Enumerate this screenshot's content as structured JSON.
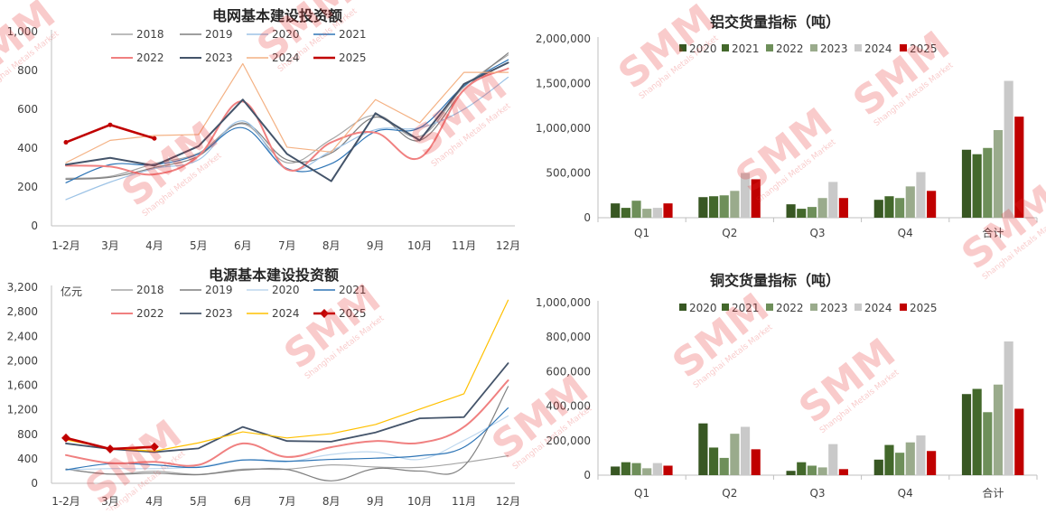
{
  "watermark": {
    "brand": "SMM",
    "tagline": "Shanghai Metals Market",
    "color": "#e52f2f"
  },
  "chart_data": [
    {
      "id": "grid",
      "type": "line",
      "title": "电网基本建设投资额",
      "unit_label": "",
      "categories": [
        "1-2月",
        "3月",
        "4月",
        "5月",
        "6月",
        "7月",
        "8月",
        "9月",
        "10月",
        "11月",
        "12月"
      ],
      "ylim": [
        0,
        1000
      ],
      "yticks": [
        "0",
        "200",
        "400",
        "600",
        "800",
        "1,000"
      ],
      "smooth": true,
      "legend_rows": [
        [
          "2018",
          "2019",
          "2020",
          "2021"
        ],
        [
          "2022",
          "2023",
          "2024",
          "2025"
        ]
      ],
      "series": [
        {
          "name": "2018",
          "color": "#a6a6a6",
          "width": 1.2,
          "values": [
            245,
            255,
            320,
            375,
            525,
            325,
            445,
            570,
            460,
            715,
            880
          ]
        },
        {
          "name": "2019",
          "color": "#7f7f7f",
          "width": 1.2,
          "values": [
            240,
            250,
            300,
            360,
            530,
            340,
            375,
            560,
            440,
            700,
            890
          ]
        },
        {
          "name": "2020",
          "color": "#9dc3e6",
          "width": 1.2,
          "values": [
            135,
            225,
            295,
            340,
            540,
            290,
            385,
            495,
            505,
            600,
            765
          ]
        },
        {
          "name": "2021",
          "color": "#2e75b6",
          "width": 1.2,
          "values": [
            222,
            315,
            315,
            370,
            505,
            295,
            320,
            485,
            505,
            720,
            855
          ]
        },
        {
          "name": "2022",
          "color": "#f08080",
          "width": 2.0,
          "values": [
            310,
            305,
            265,
            360,
            640,
            290,
            430,
            480,
            350,
            700,
            810
          ]
        },
        {
          "name": "2023",
          "color": "#44546a",
          "width": 2.0,
          "smooth": false,
          "values": [
            315,
            350,
            310,
            410,
            650,
            370,
            230,
            580,
            440,
            730,
            840
          ]
        },
        {
          "name": "2024",
          "color": "#f4b183",
          "width": 1.2,
          "smooth": false,
          "values": [
            325,
            440,
            465,
            470,
            835,
            405,
            380,
            650,
            530,
            790,
            790
          ]
        },
        {
          "name": "2025",
          "color": "#c00000",
          "width": 2.6,
          "smooth": false,
          "values": [
            430,
            520,
            450,
            null,
            null,
            null,
            null,
            null,
            null,
            null,
            null
          ]
        }
      ]
    },
    {
      "id": "power",
      "type": "line",
      "title": "电源基本建设投资额",
      "unit_label": "亿元",
      "categories": [
        "1-2月",
        "3月",
        "4月",
        "5月",
        "6月",
        "7月",
        "8月",
        "9月",
        "10月",
        "11月",
        "12月"
      ],
      "ylim": [
        0,
        3200
      ],
      "yticks": [
        "0",
        "400",
        "800",
        "1,200",
        "1,600",
        "2,000",
        "2,400",
        "2,800",
        "3,200"
      ],
      "smooth": true,
      "legend_rows": [
        [
          "2018",
          "2019",
          "2020",
          "2021"
        ],
        [
          "2022",
          "2023",
          "2024",
          "2025"
        ]
      ],
      "series": [
        {
          "name": "2018",
          "color": "#a6a6a6",
          "width": 1.2,
          "values": [
            230,
            150,
            195,
            145,
            230,
            230,
            300,
            265,
            260,
            340,
            450
          ]
        },
        {
          "name": "2019",
          "color": "#7f7f7f",
          "width": 1.2,
          "values": [
            230,
            150,
            165,
            140,
            215,
            225,
            40,
            240,
            200,
            280,
            1580
          ]
        },
        {
          "name": "2020",
          "color": "#bdd7ee",
          "width": 1.2,
          "values": [
            220,
            240,
            240,
            270,
            380,
            350,
            470,
            510,
            390,
            700,
            1100
          ]
        },
        {
          "name": "2021",
          "color": "#2e75b6",
          "width": 1.2,
          "values": [
            220,
            320,
            300,
            260,
            380,
            360,
            390,
            410,
            450,
            590,
            1230
          ]
        },
        {
          "name": "2022",
          "color": "#f08080",
          "width": 2.0,
          "values": [
            460,
            330,
            350,
            300,
            650,
            430,
            590,
            690,
            660,
            920,
            1680
          ]
        },
        {
          "name": "2023",
          "color": "#44546a",
          "width": 1.8,
          "smooth": false,
          "values": [
            650,
            560,
            510,
            570,
            920,
            690,
            680,
            830,
            1060,
            1080,
            1960
          ]
        },
        {
          "name": "2024",
          "color": "#ffc000",
          "width": 1.2,
          "smooth": false,
          "values": [
            710,
            570,
            525,
            660,
            840,
            740,
            810,
            960,
            1210,
            1460,
            2990
          ]
        },
        {
          "name": "2025",
          "color": "#c00000",
          "width": 2.6,
          "smooth": false,
          "markers": true,
          "values": [
            740,
            560,
            595,
            null,
            null,
            null,
            null,
            null,
            null,
            null,
            null
          ]
        }
      ]
    },
    {
      "id": "alu",
      "type": "bar",
      "title": "铝交货量指标（吨）",
      "categories": [
        "Q1",
        "Q2",
        "Q3",
        "Q4",
        "合计"
      ],
      "ylim": [
        0,
        2000000
      ],
      "yticks": [
        "0",
        "500,000",
        "1,000,000",
        "1,500,000",
        "2,000,000"
      ],
      "series": [
        {
          "name": "2020",
          "color": "#385723",
          "values": [
            160000,
            230000,
            150000,
            200000,
            760000
          ]
        },
        {
          "name": "2021",
          "color": "#43682b",
          "values": [
            110000,
            240000,
            100000,
            240000,
            710000
          ]
        },
        {
          "name": "2022",
          "color": "#6e8f5a",
          "values": [
            190000,
            250000,
            120000,
            220000,
            780000
          ]
        },
        {
          "name": "2023",
          "color": "#9aab8c",
          "values": [
            100000,
            300000,
            220000,
            350000,
            980000
          ]
        },
        {
          "name": "2024",
          "color": "#c9c9c9",
          "values": [
            110000,
            500000,
            400000,
            510000,
            1530000
          ]
        },
        {
          "name": "2025",
          "color": "#c00000",
          "values": [
            160000,
            430000,
            220000,
            300000,
            1130000
          ]
        }
      ]
    },
    {
      "id": "copper",
      "type": "bar",
      "title": "铜交货量指标（吨）",
      "categories": [
        "Q1",
        "Q2",
        "Q3",
        "Q4",
        "合计"
      ],
      "ylim": [
        0,
        1000000
      ],
      "yticks": [
        "0",
        "200,000",
        "400,000",
        "600,000",
        "800,000",
        "1,000,000"
      ],
      "series": [
        {
          "name": "2020",
          "color": "#385723",
          "values": [
            50000,
            300000,
            25000,
            90000,
            470000
          ]
        },
        {
          "name": "2021",
          "color": "#43682b",
          "values": [
            75000,
            160000,
            75000,
            175000,
            500000
          ]
        },
        {
          "name": "2022",
          "color": "#6e8f5a",
          "values": [
            70000,
            100000,
            55000,
            130000,
            365000
          ]
        },
        {
          "name": "2023",
          "color": "#9aab8c",
          "values": [
            40000,
            240000,
            45000,
            190000,
            525000
          ]
        },
        {
          "name": "2024",
          "color": "#c9c9c9",
          "values": [
            70000,
            280000,
            180000,
            230000,
            775000
          ]
        },
        {
          "name": "2025",
          "color": "#c00000",
          "values": [
            55000,
            150000,
            35000,
            140000,
            385000
          ]
        }
      ]
    }
  ]
}
